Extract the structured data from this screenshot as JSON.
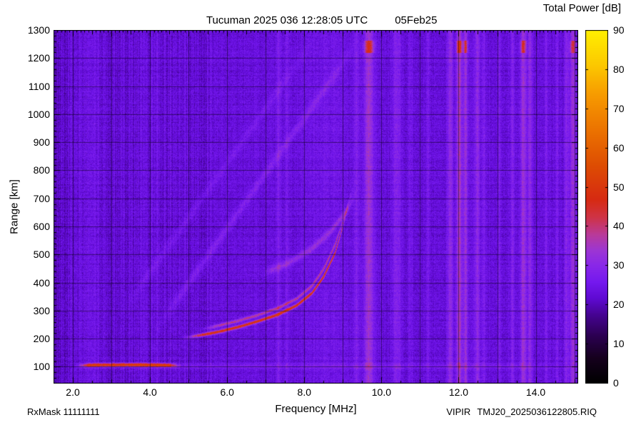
{
  "header": {
    "title": "Tucuman 2025 036 12:28:05 UTC",
    "date": "05Feb25",
    "colorbar_title": "Total Power [dB]"
  },
  "footer": {
    "rxmask": "RxMask 11111111",
    "system": "VIPIR",
    "filename": "TMJ20_2025036122805.RIQ"
  },
  "chart_data": {
    "type": "heatmap",
    "title": "Tucuman 2025 036 12:28:05 UTC 05Feb25",
    "xlabel": "Frequency [MHz]",
    "ylabel": "Range [km]",
    "colorbar_label": "Total Power [dB]",
    "x_range": [
      1.5,
      15.1
    ],
    "y_range": [
      40,
      1300
    ],
    "colorbar_range": [
      0,
      90
    ],
    "x_ticks": [
      2,
      4,
      6,
      8,
      10,
      12,
      14
    ],
    "x_tick_labels": [
      "2.0",
      "4.0",
      "6.0",
      "8.0",
      "10.0",
      "12.0",
      "14.0"
    ],
    "y_ticks": [
      100,
      200,
      300,
      400,
      500,
      600,
      700,
      800,
      900,
      1000,
      1100,
      1200,
      1300
    ],
    "colorbar_ticks": [
      0,
      10,
      20,
      30,
      40,
      50,
      60,
      70,
      80,
      90
    ],
    "grid": {
      "x_step": 1,
      "y_step": 100,
      "color": "rgba(0,0,0,0.45)"
    },
    "background_db": 23,
    "palette": [
      [
        0.0,
        "#000000"
      ],
      [
        0.07,
        "#15001d"
      ],
      [
        0.13,
        "#2a004e"
      ],
      [
        0.19,
        "#44038e"
      ],
      [
        0.24,
        "#5f0ad2"
      ],
      [
        0.285,
        "#7418ee"
      ],
      [
        0.335,
        "#8a28e8"
      ],
      [
        0.375,
        "#9c35d4"
      ],
      [
        0.42,
        "#b93a9a"
      ],
      [
        0.47,
        "#cf3345"
      ],
      [
        0.52,
        "#d62a12"
      ],
      [
        0.62,
        "#de4e02"
      ],
      [
        0.72,
        "#ec7400"
      ],
      [
        0.82,
        "#f79c00"
      ],
      [
        0.9,
        "#fcc800"
      ],
      [
        1.0,
        "#ffef00"
      ]
    ],
    "interference_bands": [
      {
        "freq": 7.33,
        "width": 0.05,
        "db": 5
      },
      {
        "freq": 7.55,
        "width": 0.04,
        "db": 3.5
      },
      {
        "freq": 8.6,
        "width": 0.7,
        "db": 1.8
      },
      {
        "freq": 9.35,
        "width": 0.06,
        "db": 5
      },
      {
        "freq": 9.68,
        "width": 0.12,
        "db": 11,
        "top_flare": true
      },
      {
        "freq": 10.4,
        "width": 0.11,
        "db": 6
      },
      {
        "freq": 10.75,
        "width": 0.05,
        "db": 3.5
      },
      {
        "freq": 11.2,
        "width": 0.05,
        "db": 3.5
      },
      {
        "freq": 11.78,
        "width": 0.07,
        "db": 8
      },
      {
        "freq": 12.02,
        "width": 0.07,
        "db": 12,
        "top_flare": true
      },
      {
        "freq": 12.18,
        "width": 0.05,
        "db": 10,
        "top_flare": true
      },
      {
        "freq": 12.48,
        "width": 0.07,
        "db": 7
      },
      {
        "freq": 12.66,
        "width": 0.04,
        "db": 4
      },
      {
        "freq": 13.06,
        "width": 0.04,
        "db": 4
      },
      {
        "freq": 13.4,
        "width": 0.05,
        "db": 5
      },
      {
        "freq": 13.68,
        "width": 0.07,
        "db": 10,
        "top_flare": true
      },
      {
        "freq": 13.85,
        "width": 0.06,
        "db": 8
      },
      {
        "freq": 14.27,
        "width": 0.04,
        "db": 5
      },
      {
        "freq": 14.55,
        "width": 0.04,
        "db": 4.5
      },
      {
        "freq": 14.8,
        "width": 0.06,
        "db": 6
      },
      {
        "freq": 14.97,
        "width": 0.08,
        "db": 9,
        "top_flare": true
      }
    ],
    "traces": [
      {
        "name": "e-layer-echo",
        "points": [
          [
            2.1,
            104
          ],
          [
            2.6,
            106
          ],
          [
            3.5,
            107
          ],
          [
            4.3,
            106
          ],
          [
            4.8,
            104
          ]
        ],
        "db": 27,
        "thickness_km": 6
      },
      {
        "name": "e-layer-weak-extension",
        "points": [
          [
            2.0,
            102
          ],
          [
            15.05,
            102
          ]
        ],
        "db": 4,
        "thickness_km": 9
      },
      {
        "name": "f-layer-o-mode",
        "points": [
          [
            4.85,
            202
          ],
          [
            5.3,
            212
          ],
          [
            5.8,
            225
          ],
          [
            6.3,
            242
          ],
          [
            6.8,
            262
          ],
          [
            7.3,
            285
          ],
          [
            7.8,
            318
          ],
          [
            8.2,
            362
          ],
          [
            8.5,
            420
          ],
          [
            8.8,
            505
          ],
          [
            9.0,
            600
          ],
          [
            9.15,
            680
          ],
          [
            9.27,
            730
          ]
        ],
        "db": 26,
        "thickness_km": 6
      },
      {
        "name": "f-layer-x-mode",
        "points": [
          [
            5.3,
            232
          ],
          [
            5.8,
            247
          ],
          [
            6.3,
            264
          ],
          [
            6.8,
            284
          ],
          [
            7.3,
            308
          ],
          [
            7.8,
            342
          ],
          [
            8.2,
            388
          ],
          [
            8.5,
            448
          ],
          [
            8.8,
            535
          ],
          [
            9.05,
            640
          ],
          [
            9.2,
            715
          ],
          [
            9.32,
            765
          ]
        ],
        "db": 15,
        "thickness_km": 6
      },
      {
        "name": "oblique-echo",
        "points": [
          [
            4.18,
            236
          ],
          [
            9.37,
            1254
          ]
        ],
        "db": 5,
        "thickness_km": 22
      },
      {
        "name": "oblique-echo-2",
        "points": [
          [
            3.3,
            300
          ],
          [
            8.2,
            1254
          ]
        ],
        "db": 3,
        "thickness_km": 22
      },
      {
        "name": "spread-echo-arc",
        "points": [
          [
            6.9,
            430
          ],
          [
            7.6,
            470
          ],
          [
            8.2,
            520
          ],
          [
            8.7,
            585
          ],
          [
            9.1,
            655
          ],
          [
            9.4,
            735
          ]
        ],
        "db": 8,
        "thickness_km": 14
      }
    ]
  }
}
